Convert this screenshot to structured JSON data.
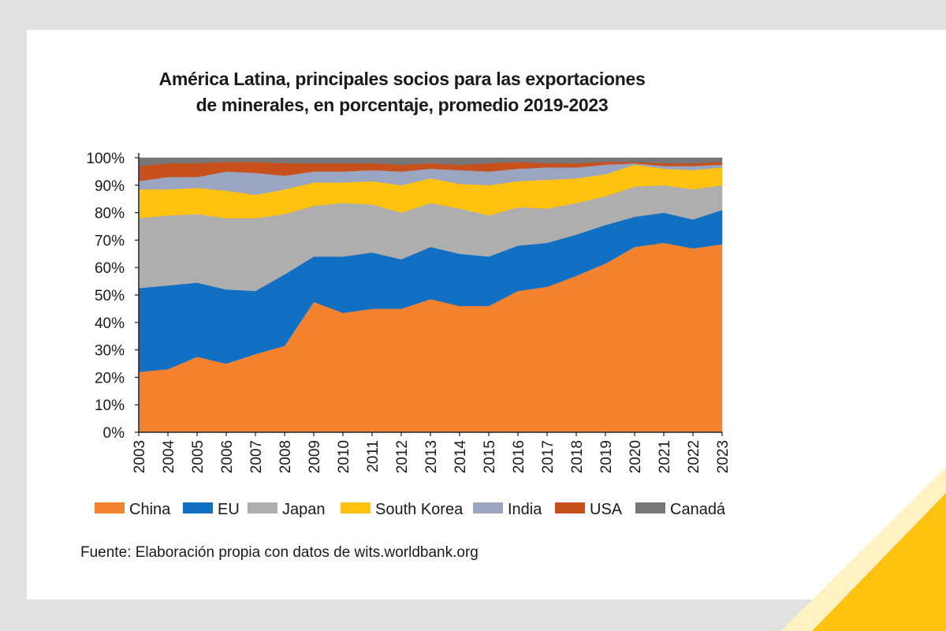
{
  "chart_data": {
    "type": "area",
    "stacked": true,
    "title": [
      "América Latina, principales socios para las exportaciones",
      "de minerales, en porcentaje, promedio 2019-2023"
    ],
    "xlabel": "",
    "ylabel": "",
    "ylim": [
      0,
      100
    ],
    "y_ticks": [
      "0%",
      "10%",
      "20%",
      "30%",
      "40%",
      "50%",
      "60%",
      "70%",
      "80%",
      "90%",
      "100%"
    ],
    "x": [
      "2003",
      "2004",
      "2005",
      "2006",
      "2007",
      "2008",
      "2009",
      "2010",
      "2011",
      "2012",
      "2013",
      "2014",
      "2015",
      "2016",
      "2017",
      "2018",
      "2019",
      "2020",
      "2021",
      "2022",
      "2023"
    ],
    "series": [
      {
        "name": "China",
        "color": "#f5822f",
        "values": [
          22,
          23,
          27.5,
          25,
          28.5,
          31.5,
          47.5,
          43.5,
          45,
          45,
          48.5,
          46,
          46,
          51.5,
          53,
          57,
          61.5,
          67.5,
          69,
          67,
          68.5
        ]
      },
      {
        "name": "EU",
        "color": "#1270c4",
        "values": [
          30.5,
          30.5,
          27,
          27,
          23,
          26,
          16.5,
          20.5,
          20.5,
          18,
          19,
          19,
          18,
          16.5,
          16,
          15,
          14,
          11,
          11,
          10.5,
          12.5
        ]
      },
      {
        "name": "Japan",
        "color": "#aeaeae",
        "values": [
          25.5,
          25.5,
          25,
          26,
          26.5,
          22,
          18.5,
          19.5,
          17.5,
          17,
          16,
          16.5,
          15,
          14,
          12.5,
          11.5,
          10.5,
          11,
          10,
          11,
          9
        ]
      },
      {
        "name": "South Korea",
        "color": "#ffc20e",
        "values": [
          10.5,
          9.5,
          9.5,
          10,
          8.5,
          9,
          8.5,
          7.5,
          8.5,
          10,
          9,
          9,
          11,
          9.5,
          10.5,
          9,
          8,
          8,
          6,
          7,
          6.5
        ]
      },
      {
        "name": "India",
        "color": "#9aa5c2",
        "values": [
          3,
          4.5,
          4,
          7,
          8,
          5,
          4,
          4,
          4,
          5,
          3.5,
          5,
          5,
          4.5,
          4.5,
          4,
          3.5,
          0.5,
          1,
          1.5,
          1
        ]
      },
      {
        "name": "USA",
        "color": "#c8501c",
        "values": [
          5.5,
          5,
          5,
          3.5,
          4,
          4.5,
          3,
          3,
          2.5,
          2.5,
          2,
          2,
          3,
          2.5,
          1.5,
          1.5,
          1,
          0.5,
          1,
          1,
          1
        ]
      },
      {
        "name": "Canadá",
        "color": "#777777",
        "values": [
          3,
          2,
          2,
          1.5,
          1.5,
          2,
          2,
          2,
          2,
          2.5,
          2,
          2.5,
          2,
          1.5,
          2,
          2,
          1.5,
          1.5,
          2,
          2,
          1.5
        ]
      }
    ],
    "legend_position": "bottom",
    "grid": false
  },
  "source_note": "Fuente: Elaboración propia con datos de wits.worldbank.org",
  "colors": {
    "background": "#e1e1e1",
    "panel": "#ffffff",
    "accent": "#ffc20e"
  }
}
